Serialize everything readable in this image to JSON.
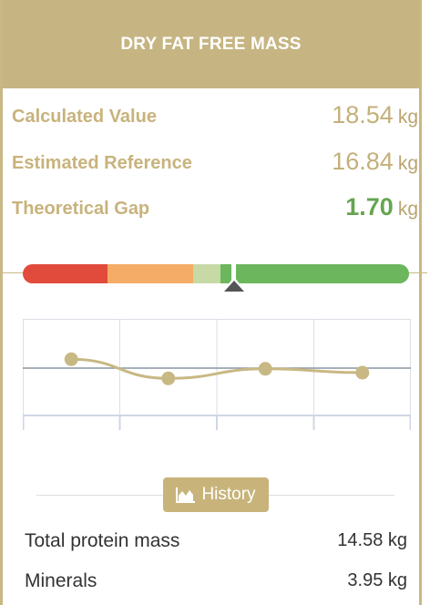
{
  "header": {
    "title": "DRY FAT FREE MASS"
  },
  "metrics": [
    {
      "label": "Calculated Value",
      "value": "18.54",
      "unit": "kg"
    },
    {
      "label": "Estimated Reference",
      "value": "16.84",
      "unit": "kg"
    },
    {
      "label": "Theoretical Gap",
      "value": "1.70",
      "unit": "kg"
    }
  ],
  "gauge": {
    "colors": {
      "red": "#e14b3b",
      "orange": "#f4ac66",
      "light_green": "#c7d9a5",
      "green": "#6cb75d",
      "pointer": "#555555"
    },
    "pointer_level": 0.55
  },
  "history_chart": {
    "values": [
      0.85,
      0.35,
      0.6,
      0.5
    ],
    "line_color": "#c8b884",
    "grid_color": "#dcdfe8",
    "baseline_color": "#8a96a0"
  },
  "history_button": {
    "icon": "area-chart-icon",
    "label": "History"
  },
  "details": [
    {
      "label": "Total protein mass",
      "value": "14.58 kg"
    },
    {
      "label": "Minerals",
      "value": "3.95 kg"
    }
  ],
  "colors": {
    "accent": "#c6b582",
    "good": "#66a54f"
  }
}
